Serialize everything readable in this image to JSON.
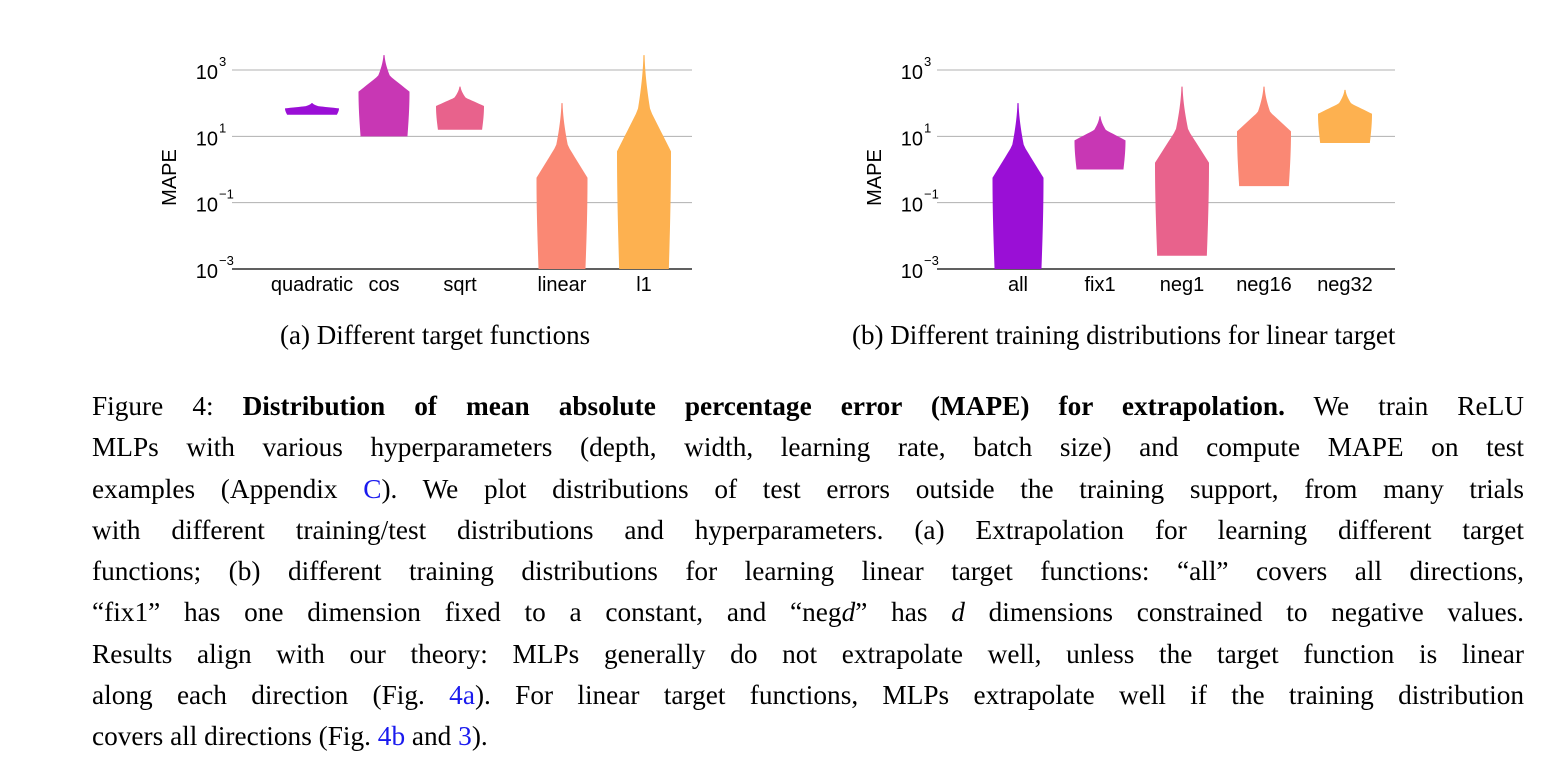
{
  "chart_data": [
    {
      "type": "violin",
      "ylabel": "MAPE",
      "yscale": "log",
      "ylim_exp": [
        -3,
        3
      ],
      "ytick_exps": [
        -3,
        -1,
        1,
        3
      ],
      "ytick_base": "10",
      "grid": true,
      "categories": [
        "quadratic",
        "cos",
        "sqrt",
        "linear",
        "l1"
      ],
      "colors": [
        "#9a0fd6",
        "#c837b4",
        "#e8628c",
        "#fa8874",
        "#fdb150"
      ],
      "violins": [
        {
          "name": "quadratic",
          "min_exp": 1.65,
          "max_exp": 2.0,
          "max_halfwidth_frac": 0.9
        },
        {
          "name": "cos",
          "min_exp": 1.0,
          "max_exp": 3.45,
          "max_halfwidth_frac": 0.85
        },
        {
          "name": "sqrt",
          "min_exp": 1.2,
          "max_exp": 2.5,
          "max_halfwidth_frac": 0.8
        },
        {
          "name": "linear",
          "min_exp": -3.0,
          "max_exp": 2.0,
          "max_halfwidth_frac": 0.85
        },
        {
          "name": "l1",
          "min_exp": -3.0,
          "max_exp": 3.45,
          "max_halfwidth_frac": 0.9
        }
      ]
    },
    {
      "type": "violin",
      "ylabel": "MAPE",
      "yscale": "log",
      "ylim_exp": [
        -3,
        3
      ],
      "ytick_exps": [
        -3,
        -1,
        1,
        3
      ],
      "ytick_base": "10",
      "grid": true,
      "categories": [
        "all",
        "fix1",
        "neg1",
        "neg16",
        "neg32"
      ],
      "colors": [
        "#9a0fd6",
        "#c837b4",
        "#e8628c",
        "#fa8874",
        "#fdb150"
      ],
      "violins": [
        {
          "name": "all",
          "min_exp": -3.0,
          "max_exp": 2.0,
          "max_halfwidth_frac": 0.85
        },
        {
          "name": "fix1",
          "min_exp": 0.0,
          "max_exp": 1.6,
          "max_halfwidth_frac": 0.85
        },
        {
          "name": "neg1",
          "min_exp": -2.6,
          "max_exp": 2.5,
          "max_halfwidth_frac": 0.9
        },
        {
          "name": "neg16",
          "min_exp": -0.5,
          "max_exp": 2.5,
          "max_halfwidth_frac": 0.9
        },
        {
          "name": "neg32",
          "min_exp": 0.8,
          "max_exp": 2.4,
          "max_halfwidth_frac": 0.9
        }
      ]
    }
  ],
  "subcaptions": {
    "a": "(a) Different target functions",
    "b": "(b) Different training distributions for linear target"
  },
  "caption": {
    "label": "Figure 4:",
    "bold": "Distribution of mean absolute percentage error (MAPE) for extrapolation.",
    "l1_rest": "We train ReLU",
    "l2": "MLPs with various hyperparameters (depth, width, learning rate, batch size) and compute MAPE on test",
    "l3_a": "examples (Appendix",
    "l3_ref": "C",
    "l3_b": "). We plot distributions of test errors outside the training support, from many trials",
    "l4": "with different training/test distributions and hyperparameters. (a) Extrapolation for learning different target",
    "l5": "functions; (b) different training distributions for learning linear target functions: “all” covers all directions,",
    "l6_a": "“fix1” has one dimension fixed to a constant, and “neg",
    "l6_d1": "d",
    "l6_b": "” has",
    "l6_d2": "d",
    "l6_c": "dimensions constrained to negative values.",
    "l7": "Results align with our theory: MLPs generally do not extrapolate well, unless the target function is linear",
    "l8_a": "along each direction (Fig.",
    "l8_ref": "4a",
    "l8_b": "). For linear target functions, MLPs extrapolate well if the training distribution",
    "l9_a": "covers all directions (Fig.",
    "l9_ref1": "4b",
    "l9_b": "and",
    "l9_ref2": "3",
    "l9_c": ")."
  }
}
